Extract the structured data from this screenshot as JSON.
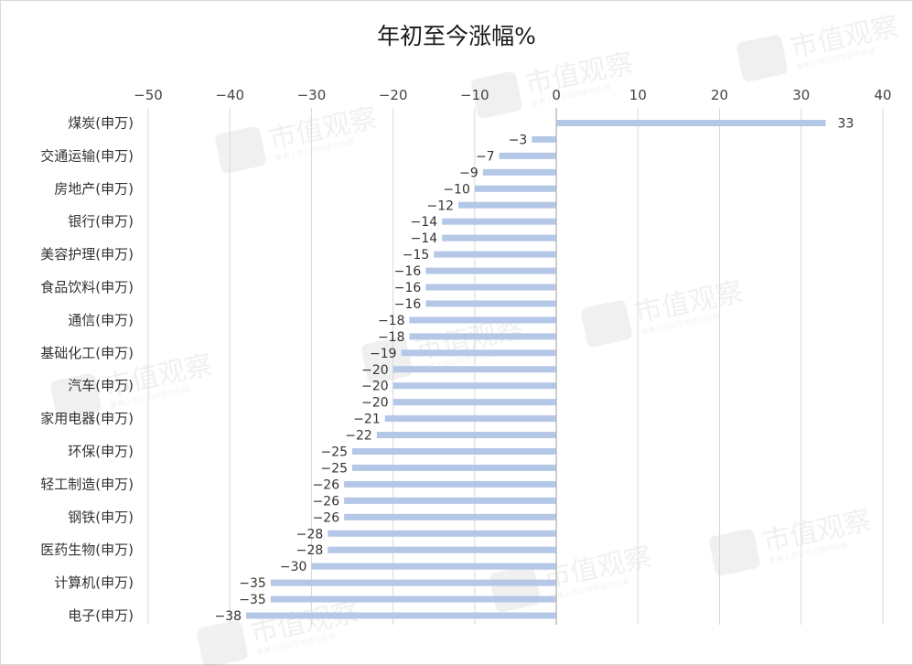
{
  "colors": {
    "bar": "#b4c7e7",
    "grid": "#d9d9d9",
    "axis": "#bfbfbf",
    "text": "#333333"
  },
  "watermark": {
    "brand": "市值观察",
    "tagline": "聚焦上市公司市值与价值"
  },
  "chart_data": {
    "type": "bar",
    "orientation": "horizontal",
    "title": "年初至今涨幅%",
    "xlim": [
      -50,
      40
    ],
    "xticks": [
      -50,
      -40,
      -30,
      -20,
      -10,
      0,
      10,
      20,
      30,
      40
    ],
    "tick_labels": [
      "−50",
      "−40",
      "−30",
      "−20",
      "−10",
      "0",
      "10",
      "20",
      "30",
      "40"
    ],
    "grid": true,
    "legend": "none",
    "categories": [
      "煤炭(申万)",
      "",
      "交通运输(申万)",
      "",
      "房地产(申万)",
      "",
      "银行(申万)",
      "",
      "美容护理(申万)",
      "",
      "食品饮料(申万)",
      "",
      "通信(申万)",
      "",
      "基础化工(申万)",
      "",
      "汽车(申万)",
      "",
      "家用电器(申万)",
      "",
      "环保(申万)",
      "",
      "轻工制造(申万)",
      "",
      "钢铁(申万)",
      "",
      "医药生物(申万)",
      "",
      "计算机(申万)",
      "",
      "电子(申万)"
    ],
    "values": [
      33,
      -3,
      -7,
      -9,
      -10,
      -12,
      -14,
      -14,
      -15,
      -16,
      -16,
      -16,
      -18,
      -18,
      -19,
      -20,
      -20,
      -20,
      -21,
      -22,
      -25,
      -25,
      -26,
      -26,
      -26,
      -28,
      -28,
      -30,
      -35,
      -35,
      -38
    ],
    "data_labels": [
      "33",
      "−3",
      "−7",
      "−9",
      "−10",
      "−12",
      "−14",
      "−14",
      "−15",
      "−16",
      "−16",
      "−16",
      "−18",
      "−18",
      "−19",
      "−20",
      "−20",
      "−20",
      "−21",
      "−22",
      "−25",
      "−25",
      "−26",
      "−26",
      "−26",
      "−28",
      "−28",
      "−30",
      "−35",
      "−35",
      "−38"
    ]
  }
}
